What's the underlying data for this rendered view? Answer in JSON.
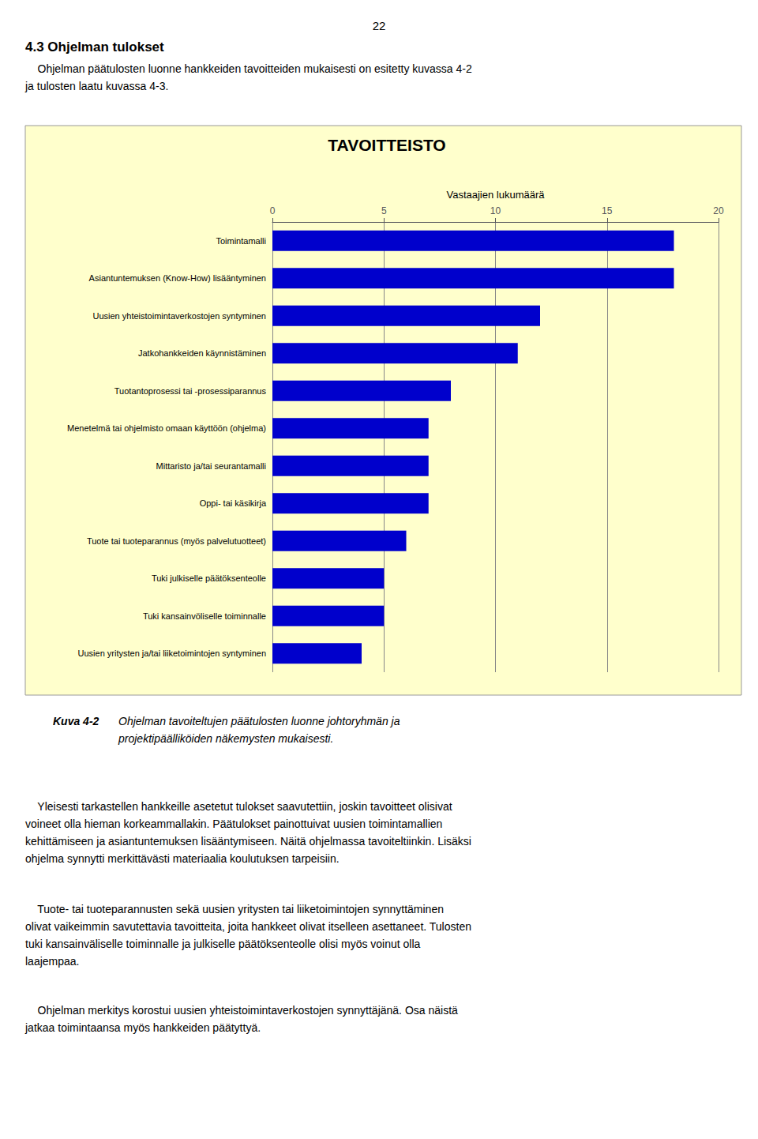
{
  "chart_data": {
    "type": "bar",
    "orientation": "horizontal",
    "title": "TAVOITTEISTO",
    "xlabel": "Vastaajien lukumäärä",
    "categories": [
      "Uusien yritysten ja/tai liiketoimintojen syntyminen",
      "Tuki kansainvöliselle toiminnalle",
      "Tuki julkiselle päätöksenteolle",
      "Tuote tai tuoteparannus (myös palvelutuotteet)",
      "Oppi- tai käsikirja",
      "Mittaristo ja/tai seurantamalli",
      "Menetelmä tai ohjelmisto omaan käyttöön (ohjelma)",
      "Tuotantoprosessi tai -prosessiparannus",
      "Jatkohankkeiden käynnistäminen",
      "Uusien yhteistoimintaverkostojen syntyminen",
      "Asiantuntemuksen (Know-How) lisääntyminen",
      "Toimintamalli"
    ],
    "values": [
      4,
      5,
      5,
      6,
      7,
      7,
      7,
      8,
      11,
      12,
      18,
      18
    ],
    "color": "#0000CC",
    "xlim": [
      0,
      20
    ],
    "xticks": [
      0,
      5,
      10,
      15,
      20
    ],
    "grid": true,
    "annotations": [
      "22",
      "4.3 Ohjelman tulokset",
      "    Ohjelman päätulosten luonne hankkeiden tavoitteiden mukaisesti on esitetty kuvassa 4-2\nja tulosten laatu kuvassa 4-3.",
      "Kuva 4-2",
      "Ohjelman tavoiteltujen päätulosten luonne johtoryhmän ja\nprojektipäälliköiden näkemysten mukaisesti.",
      "    Yleisesti tarkastellen hankkeille asetetut tulokset saavutettiin, joskin tavoitteet olisivat\nvoineet olla hieman korkeammallakin. Päätulokset painottuivat uusien toimintamallien\nkehittämiseen ja asiantuntemuksen lisääntymiseen. Näitä ohjelmassa tavoiteltiinkin. Lisäksi\nohjelma synnytti merkittävästi materiaalia koulutuksen tarpeisiin.",
      "    Tuote- tai tuoteparannusten sekä uusien yritysten tai liiketoimintojen synnyttäminen\nolivat vaikeimmin savutettavia tavoitteita, joita hankkeet olivat itselleen asettaneet. Tulosten\ntuki kansainväliselle toiminnalle ja julkiselle päätöksenteolle olisi myös voinut olla\nlaajempaa.",
      "    Ohjelman merkitys korostui uusien yhteistoimintaverkostojen synnyttäjänä. Osa näistä\njatkaa toimintaansa myös hankkeiden päätyttyä."
    ]
  }
}
